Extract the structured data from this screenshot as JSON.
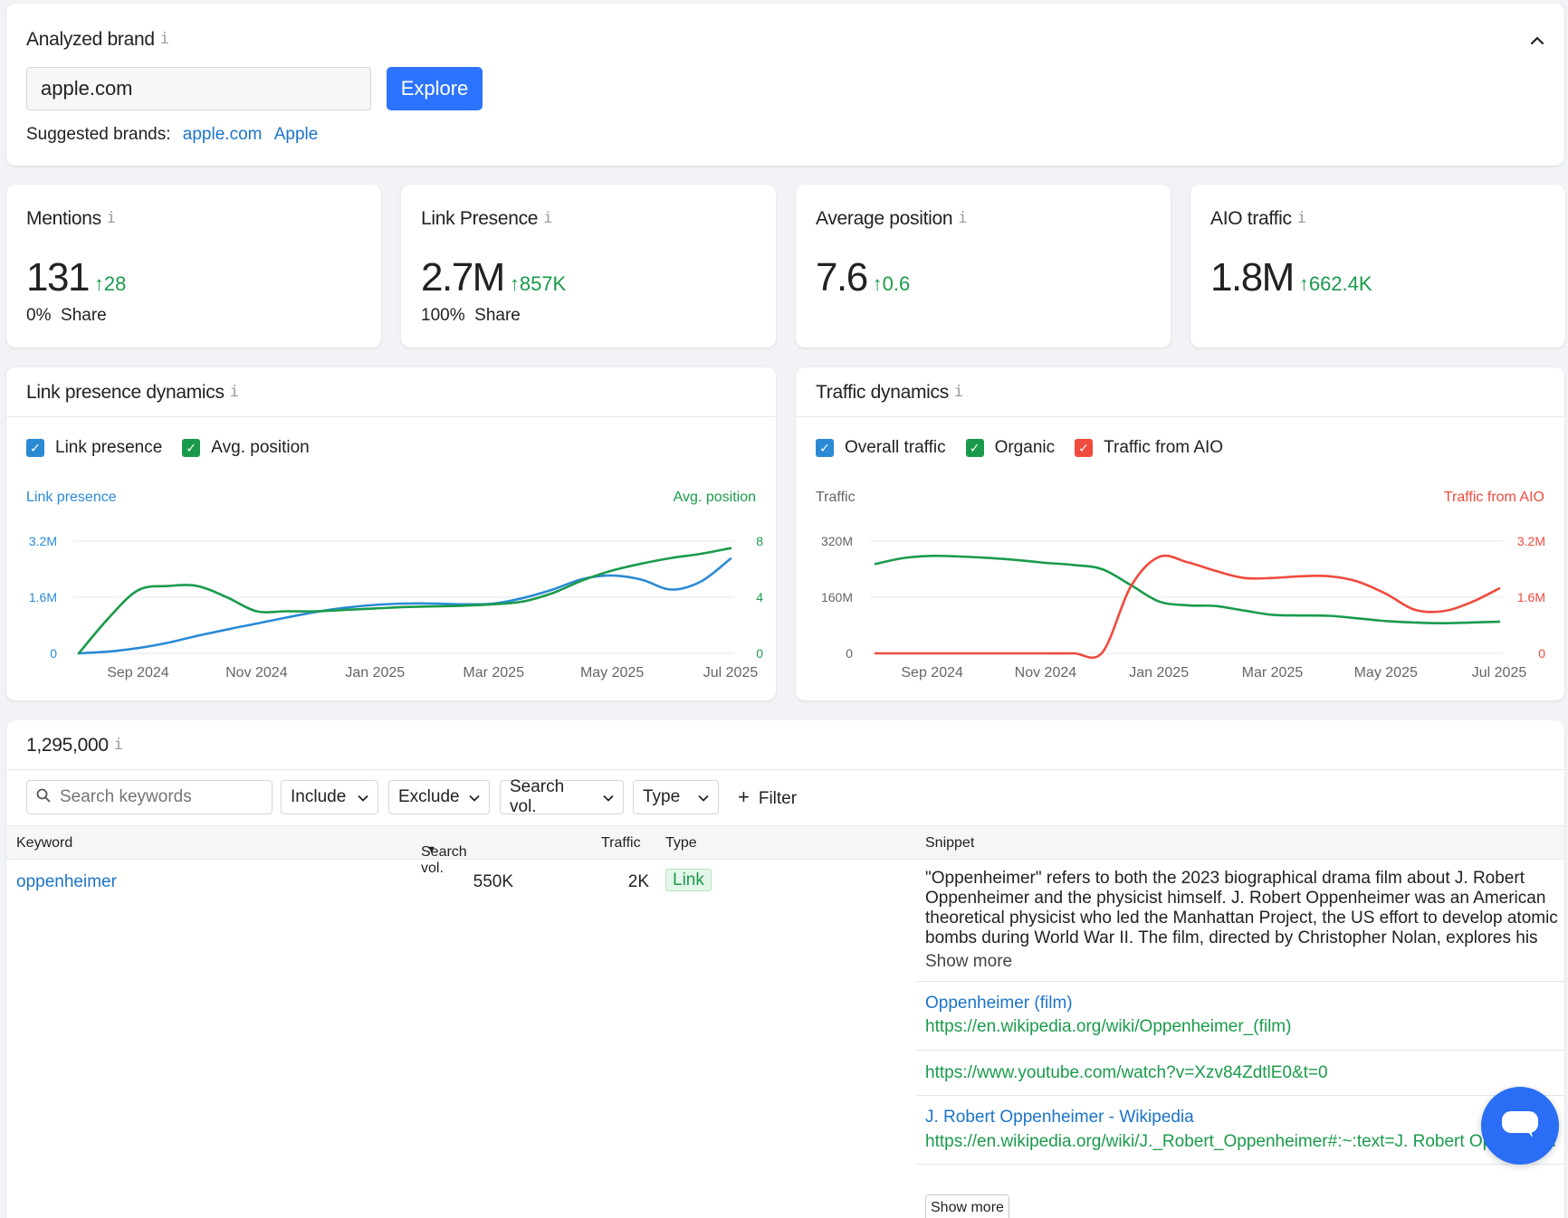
{
  "brand": {
    "title": "Analyzed brand",
    "info": "i",
    "input_value": "apple.com",
    "explore_label": "Explore",
    "suggested_label": "Suggested brands:",
    "suggested": [
      "apple.com",
      "Apple"
    ],
    "collapse_icon": "chevron-up-icon"
  },
  "kpis": {
    "mentions": {
      "title": "Mentions",
      "value": "131",
      "delta": "28",
      "share": "0%",
      "share_label": "Share"
    },
    "link_presence": {
      "title": "Link Presence",
      "value": "2.7M",
      "delta": "857K",
      "share": "100%",
      "share_label": "Share"
    },
    "avg_position": {
      "title": "Average position",
      "value": "7.6",
      "delta": "0.6"
    },
    "aio_traffic": {
      "title": "AIO traffic",
      "value": "1.8M",
      "delta": "662.4K"
    }
  },
  "colors": {
    "blue": "#2a8ad4",
    "green": "#1a9b4b",
    "red": "#ef4a3c",
    "accent": "#2c74ff"
  },
  "chart_data": [
    {
      "type": "line",
      "title": "Link presence dynamics",
      "legend": [
        "Link presence",
        "Avg. position"
      ],
      "left_axis_title": "Link presence",
      "right_axis_title": "Avg. position",
      "left_ticks": [
        "3.2M",
        "1.6M",
        "0"
      ],
      "right_ticks": [
        "8",
        "4",
        "0"
      ],
      "x_tick_labels": [
        "Sep 2024",
        "Nov 2024",
        "Jan 2025",
        "Mar 2025",
        "May 2025",
        "Jul 2025"
      ],
      "x_tick_months": [
        1,
        3,
        5,
        7,
        9,
        11
      ],
      "ylim_left": [
        0,
        3.2
      ],
      "ylim_right": [
        0,
        8
      ],
      "series": [
        {
          "name": "Link presence",
          "axis": "left",
          "color": "#2a8ad4",
          "x": [
            0,
            0.5,
            1,
            1.5,
            2,
            2.5,
            3,
            3.5,
            4,
            4.5,
            5,
            5.5,
            6,
            6.5,
            7,
            7.5,
            8,
            8.5,
            9,
            9.5,
            10,
            10.5,
            11
          ],
          "y": [
            0,
            0.05,
            0.15,
            0.3,
            0.5,
            0.68,
            0.85,
            1.02,
            1.18,
            1.3,
            1.38,
            1.42,
            1.42,
            1.4,
            1.42,
            1.58,
            1.82,
            2.12,
            2.22,
            2.1,
            1.82,
            2.05,
            2.7
          ]
        },
        {
          "name": "Avg. position",
          "axis": "right",
          "color": "#1a9b4b",
          "x": [
            0,
            0.5,
            1,
            1.5,
            2,
            2.5,
            3,
            3.5,
            4,
            4.5,
            5,
            5.5,
            6,
            6.5,
            7,
            7.5,
            8,
            8.5,
            9,
            9.5,
            10,
            10.5,
            11
          ],
          "y": [
            0,
            2.5,
            4.5,
            4.8,
            4.8,
            4.0,
            3.0,
            3.0,
            3.0,
            3.1,
            3.2,
            3.3,
            3.35,
            3.4,
            3.5,
            3.7,
            4.3,
            5.2,
            5.9,
            6.4,
            6.8,
            7.1,
            7.5
          ]
        }
      ]
    },
    {
      "type": "line",
      "title": "Traffic dynamics",
      "legend": [
        "Overall traffic",
        "Organic",
        "Traffic from AIO"
      ],
      "left_axis_title": "Traffic",
      "right_axis_title": "Traffic from AIO",
      "left_ticks": [
        "320M",
        "160M",
        "0"
      ],
      "right_ticks": [
        "3.2M",
        "1.6M",
        "0"
      ],
      "x_tick_labels": [
        "Sep 2024",
        "Nov 2024",
        "Jan 2025",
        "Mar 2025",
        "May 2025",
        "Jul 2025"
      ],
      "x_tick_months": [
        1,
        3,
        5,
        7,
        9,
        11
      ],
      "ylim_left": [
        0,
        320
      ],
      "ylim_right": [
        0,
        3.2
      ],
      "series": [
        {
          "name": "Organic",
          "axis": "left",
          "color": "#1a9b4b",
          "x": [
            0,
            0.5,
            1,
            1.5,
            2,
            2.5,
            3,
            3.5,
            4,
            4.5,
            5,
            5.5,
            6,
            6.5,
            7,
            7.5,
            8,
            8.5,
            9,
            9.5,
            10,
            10.5,
            11
          ],
          "y": [
            255,
            272,
            278,
            276,
            272,
            266,
            258,
            252,
            240,
            195,
            148,
            137,
            135,
            122,
            110,
            108,
            107,
            100,
            92,
            88,
            86,
            88,
            90
          ]
        },
        {
          "name": "Traffic from AIO",
          "axis": "right",
          "color": "#ef4a3c",
          "x": [
            0,
            0.5,
            1,
            1.5,
            2,
            2.5,
            3,
            3.5,
            4,
            4.5,
            5,
            5.5,
            6,
            6.5,
            7,
            7.5,
            8,
            8.5,
            9,
            9.5,
            10,
            10.5,
            11
          ],
          "y": [
            0,
            0,
            0,
            0,
            0,
            0,
            0,
            0,
            0.02,
            1.9,
            2.75,
            2.6,
            2.35,
            2.15,
            2.15,
            2.2,
            2.2,
            2.05,
            1.7,
            1.25,
            1.2,
            1.45,
            1.85
          ]
        }
      ]
    }
  ],
  "table": {
    "count": "1,295,000",
    "search_placeholder": "Search keywords",
    "filters": [
      "Include",
      "Exclude",
      "Search vol.",
      "Type"
    ],
    "filter_button": "Filter",
    "columns": {
      "keyword": "Keyword",
      "search_vol": "Search vol.",
      "traffic": "Traffic",
      "type": "Type",
      "snippet": "Snippet"
    },
    "row": {
      "keyword": "oppenheimer",
      "search_vol": "550K",
      "traffic": "2K",
      "type": "Link",
      "snippet": "\"Oppenheimer\" refers to both the 2023 biographical drama film about J. Robert Oppenheimer and the physicist himself. J. Robert Oppenheimer was an American theoretical physicist who led the Manhattan Project, the US effort to develop atomic bombs during World War II. The film, directed by Christopher Nolan, explores his life, his role in the Manhattan Project, and the moral consequences ...",
      "show_more": "Show more",
      "sources": [
        {
          "title": "Oppenheimer (film)",
          "url": "https://en.wikipedia.org/wiki/Oppenheimer_(film)"
        },
        {
          "title": "",
          "url": "https://www.youtube.com/watch?v=Xzv84ZdtlE0&t=0"
        },
        {
          "title": "J. Robert Oppenheimer - Wikipedia",
          "url": "https://en.wikipedia.org/wiki/J._Robert_Oppenheimer#:~:text=J. Robert Oppenheimer..."
        }
      ],
      "sources_show_more": "Show more"
    }
  }
}
